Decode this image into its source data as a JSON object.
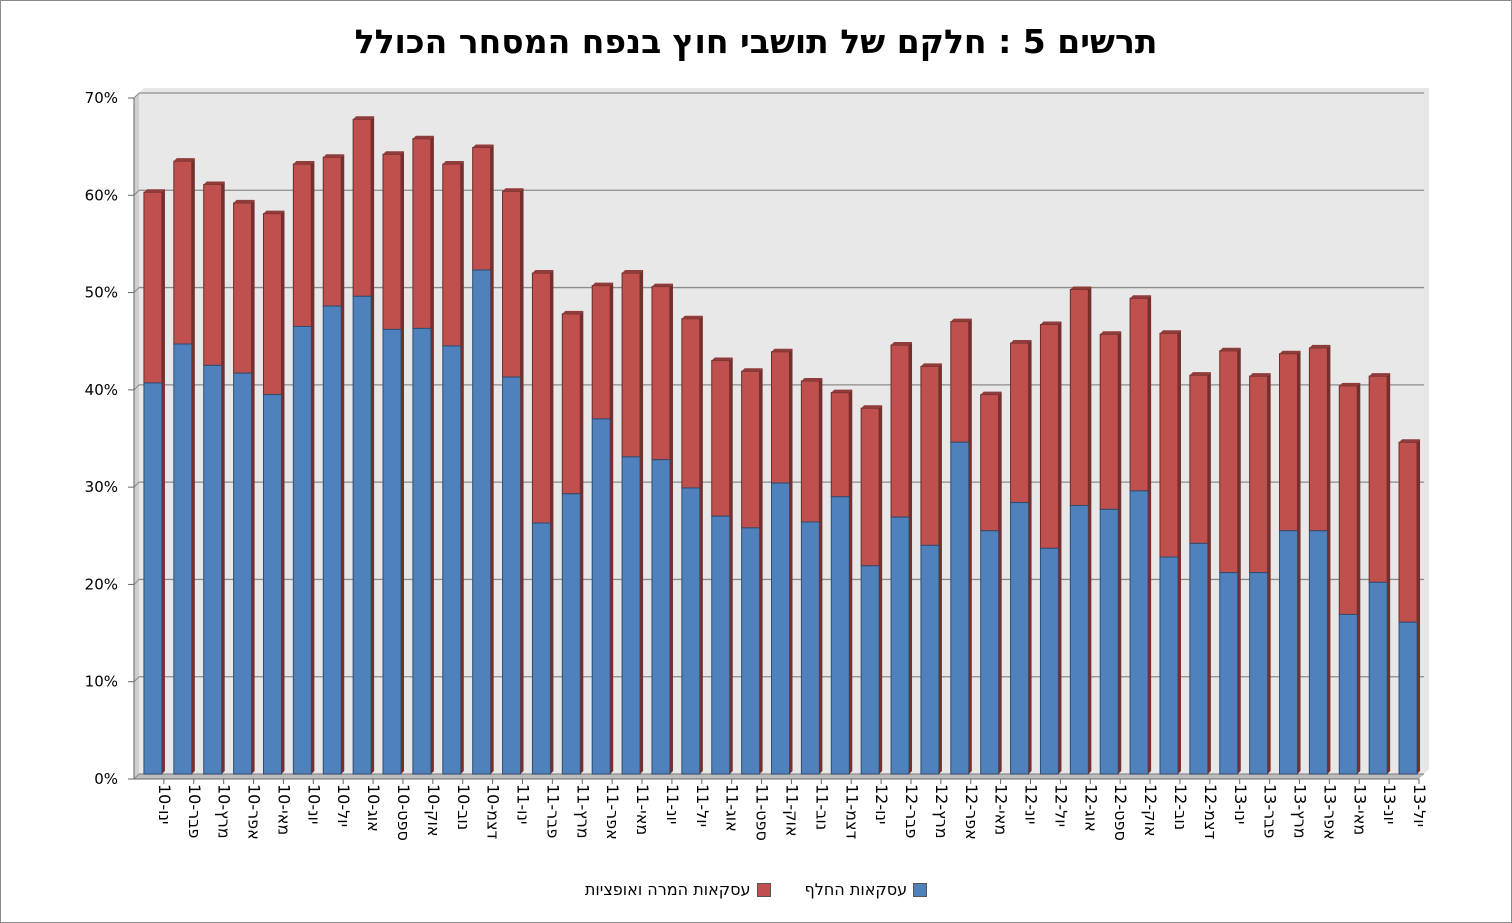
{
  "chart_data": {
    "type": "bar",
    "stacked": true,
    "title": "תרשים 5 : חלקם של תושבי חוץ בנפח המסחר הכולל",
    "xlabel": "",
    "ylabel": "",
    "ylim": [
      0,
      70
    ],
    "y_ticks": [
      "0%",
      "10%",
      "20%",
      "30%",
      "40%",
      "50%",
      "60%",
      "70%"
    ],
    "grid": true,
    "legend_position": "bottom",
    "categories": [
      "ינו-10",
      "פבר-10",
      "מרץ-10",
      "אפר-10",
      "מאי-10",
      "יונ-10",
      "יול-10",
      "אוג-10",
      "ספט-10",
      "אוק-10",
      "נוב-10",
      "דצמ-10",
      "ינו-11",
      "פבר-11",
      "מרץ-11",
      "אפר-11",
      "מאי-11",
      "יונ-11",
      "יול-11",
      "אוג-11",
      "ספט-11",
      "אוק-11",
      "נוב-11",
      "דצמ-11",
      "ינו-12",
      "פבר-12",
      "מרץ-12",
      "אפר-12",
      "מאי-12",
      "יונ-12",
      "יול-12",
      "אוג-12",
      "ספט-12",
      "אוק-12",
      "נוב-12",
      "דצמ-12",
      "ינו-13",
      "פבר-13",
      "מרץ-13",
      "אפר-13",
      "מאי-13",
      "יונ-13",
      "יול-13"
    ],
    "series": [
      {
        "name": "עסקאות החלף",
        "color": "#4f81bd",
        "values": [
          40.2,
          44.2,
          42,
          41.2,
          39,
          46,
          48.1,
          49.1,
          45.7,
          45.8,
          44,
          51.8,
          40.8,
          25.8,
          28.8,
          36.5,
          32.6,
          32.3,
          29.4,
          26.5,
          25.3,
          29.9,
          25.9,
          28.5,
          21.4,
          26.4,
          23.5,
          34.1,
          25,
          27.9,
          23.2,
          27.6,
          27.2,
          29.1,
          22.3,
          23.7,
          20.7,
          20.7,
          25,
          25,
          16.4,
          19.7,
          15.6
        ]
      },
      {
        "name": "עסקאות המרה ואופציות",
        "color": "#c0504d",
        "values": [
          19.6,
          18.8,
          18.6,
          17.5,
          18.6,
          16.7,
          15.3,
          18.2,
          18,
          19.5,
          18.7,
          12.6,
          19.1,
          25.7,
          18.5,
          13.7,
          18.9,
          17.8,
          17.4,
          16,
          16.1,
          13.5,
          14.5,
          10.7,
          16.2,
          17.7,
          18.4,
          12.4,
          14,
          16.4,
          23,
          22.2,
          18,
          19.8,
          23,
          17.3,
          22.8,
          20.2,
          18.2,
          18.8,
          23.5,
          21.2,
          18.5
        ]
      }
    ]
  }
}
